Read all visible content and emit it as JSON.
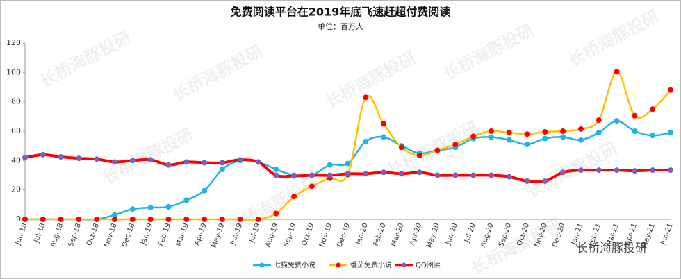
{
  "chart_data": {
    "type": "line",
    "title": "免费阅读平台在2019年底飞速赶超付费阅读",
    "subtitle": "单位：百万人",
    "watermark": "长桥海豚投研",
    "categories": [
      "Jun-18",
      "Jul-18",
      "Aug-18",
      "Sep-18",
      "Oct-18",
      "Nov-18",
      "Dec-18",
      "Jan-19",
      "Feb-19",
      "Mar-19",
      "Apr-19",
      "May-19",
      "Jun-19",
      "Jul-19",
      "Aug-19",
      "Sep-19",
      "Oct-19",
      "Nov-19",
      "Dec-19",
      "Jan-20",
      "Feb-20",
      "Mar-20",
      "Apr-20",
      "May-20",
      "Jun-20",
      "Jul-20",
      "Aug-20",
      "Sep-20",
      "Oct-20",
      "Nov-20",
      "Dec-20",
      "Jan-21",
      "Feb-21",
      "Mar-21",
      "Apr-21",
      "May-21",
      "Jun-21"
    ],
    "series": [
      {
        "name": "七猫免费小说",
        "color": "#1fb4e6",
        "dot_color": "#1fb4e6",
        "values": [
          0,
          0,
          0,
          0,
          0,
          3,
          7,
          8,
          8.5,
          13,
          19.5,
          34,
          40,
          39,
          34,
          30,
          30,
          37,
          38,
          53,
          56,
          50,
          45,
          47,
          49,
          55,
          56,
          54,
          51,
          55,
          56,
          54,
          59,
          67,
          60,
          57,
          59
        ]
      },
      {
        "name": "番茄免费小说",
        "color": "#ffc000",
        "dot_color": "#ff0000",
        "values": [
          0,
          0,
          0,
          0,
          0,
          0,
          0,
          0,
          0,
          0,
          0,
          0,
          0,
          0,
          4,
          15.5,
          22.5,
          28,
          30.5,
          83,
          65,
          49,
          43.5,
          47,
          51,
          56.5,
          60,
          59,
          58,
          59.5,
          60,
          61.5,
          67.5,
          100.5,
          70.5,
          75,
          88
        ]
      },
      {
        "name": "QQ阅读",
        "color": "#ff0000",
        "dot_color": "#7b5fb8",
        "values": [
          42,
          44,
          42.5,
          41.5,
          41,
          39,
          40,
          40.5,
          37,
          39,
          38.5,
          38.5,
          40.5,
          39,
          30,
          29.5,
          30,
          30,
          31,
          31,
          32,
          31,
          32,
          30,
          30,
          30,
          30,
          29,
          26,
          26,
          32,
          33.5,
          33.5,
          33.5,
          33,
          33.5,
          33.5
        ]
      }
    ],
    "ylim": [
      0,
      120
    ],
    "yticks": [
      0,
      20,
      40,
      60,
      80,
      100,
      120
    ],
    "grid": false,
    "legend": "bottom"
  }
}
